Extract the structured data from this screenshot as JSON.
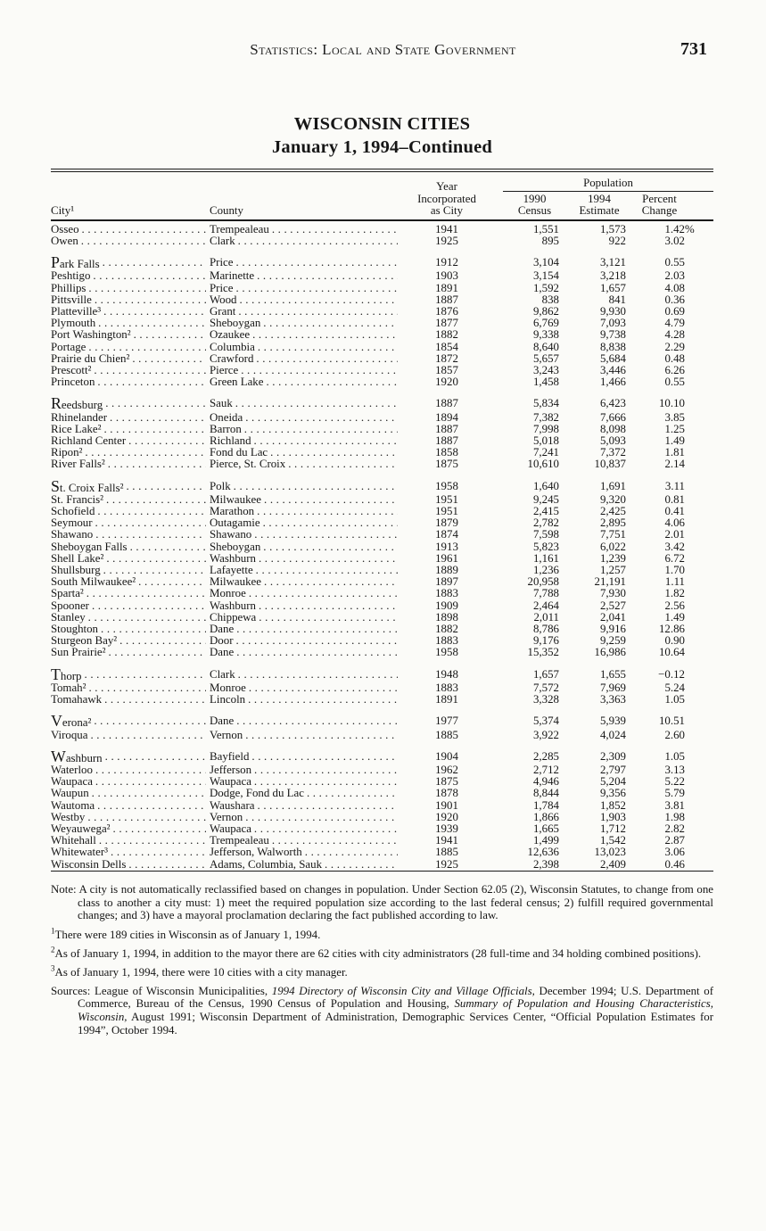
{
  "page": {
    "running_head": "Statistics: Local and State Government",
    "page_number": "731"
  },
  "title": {
    "line1": "WISCONSIN CITIES",
    "line2": "January 1, 1994–Continued"
  },
  "table": {
    "percent_symbol": "%",
    "headers": {
      "city": "City¹",
      "county": "County",
      "year": "Year\nIncorporated\nas City",
      "population": "Population",
      "census": "1990\nCensus",
      "estimate": "1994\nEstimate",
      "change": "Percent\nChange"
    },
    "groups": [
      {
        "rows": [
          {
            "city": "Osseo",
            "county": "Trempealeau",
            "year": "1941",
            "census": "1,551",
            "estimate": "1,573",
            "change": "1.42",
            "pct": true
          },
          {
            "city": "Owen",
            "county": "Clark",
            "year": "1925",
            "census": "895",
            "estimate": "922",
            "change": "3.02"
          }
        ]
      },
      {
        "rows": [
          {
            "city": "Park Falls",
            "county": "Price",
            "year": "1912",
            "census": "3,104",
            "estimate": "3,121",
            "change": "0.55",
            "lead": true
          },
          {
            "city": "Peshtigo",
            "county": "Marinette",
            "year": "1903",
            "census": "3,154",
            "estimate": "3,218",
            "change": "2.03"
          },
          {
            "city": "Phillips",
            "county": "Price",
            "year": "1891",
            "census": "1,592",
            "estimate": "1,657",
            "change": "4.08"
          },
          {
            "city": "Pittsville",
            "county": "Wood",
            "year": "1887",
            "census": "838",
            "estimate": "841",
            "change": "0.36"
          },
          {
            "city": "Platteville³",
            "county": "Grant",
            "year": "1876",
            "census": "9,862",
            "estimate": "9,930",
            "change": "0.69"
          },
          {
            "city": "Plymouth",
            "county": "Sheboygan",
            "year": "1877",
            "census": "6,769",
            "estimate": "7,093",
            "change": "4.79"
          },
          {
            "city": "Port Washington²",
            "county": "Ozaukee",
            "year": "1882",
            "census": "9,338",
            "estimate": "9,738",
            "change": "4.28"
          },
          {
            "city": "Portage",
            "county": "Columbia",
            "year": "1854",
            "census": "8,640",
            "estimate": "8,838",
            "change": "2.29"
          },
          {
            "city": "Prairie du Chien²",
            "county": "Crawford",
            "year": "1872",
            "census": "5,657",
            "estimate": "5,684",
            "change": "0.48"
          },
          {
            "city": "Prescott²",
            "county": "Pierce",
            "year": "1857",
            "census": "3,243",
            "estimate": "3,446",
            "change": "6.26"
          },
          {
            "city": "Princeton",
            "county": "Green Lake",
            "year": "1920",
            "census": "1,458",
            "estimate": "1,466",
            "change": "0.55"
          }
        ]
      },
      {
        "rows": [
          {
            "city": "Reedsburg",
            "county": "Sauk",
            "year": "1887",
            "census": "5,834",
            "estimate": "6,423",
            "change": "10.10",
            "lead": true
          },
          {
            "city": "Rhinelander",
            "county": "Oneida",
            "year": "1894",
            "census": "7,382",
            "estimate": "7,666",
            "change": "3.85"
          },
          {
            "city": "Rice Lake²",
            "county": "Barron",
            "year": "1887",
            "census": "7,998",
            "estimate": "8,098",
            "change": "1.25"
          },
          {
            "city": "Richland Center",
            "county": "Richland",
            "year": "1887",
            "census": "5,018",
            "estimate": "5,093",
            "change": "1.49"
          },
          {
            "city": "Ripon²",
            "county": "Fond du Lac",
            "year": "1858",
            "census": "7,241",
            "estimate": "7,372",
            "change": "1.81"
          },
          {
            "city": "River Falls²",
            "county": "Pierce, St. Croix",
            "year": "1875",
            "census": "10,610",
            "estimate": "10,837",
            "change": "2.14"
          }
        ]
      },
      {
        "rows": [
          {
            "city": "St. Croix Falls²",
            "county": "Polk",
            "year": "1958",
            "census": "1,640",
            "estimate": "1,691",
            "change": "3.11",
            "lead": true
          },
          {
            "city": "St. Francis²",
            "county": "Milwaukee",
            "year": "1951",
            "census": "9,245",
            "estimate": "9,320",
            "change": "0.81"
          },
          {
            "city": "Schofield",
            "county": "Marathon",
            "year": "1951",
            "census": "2,415",
            "estimate": "2,425",
            "change": "0.41"
          },
          {
            "city": "Seymour",
            "county": "Outagamie",
            "year": "1879",
            "census": "2,782",
            "estimate": "2,895",
            "change": "4.06"
          },
          {
            "city": "Shawano",
            "county": "Shawano",
            "year": "1874",
            "census": "7,598",
            "estimate": "7,751",
            "change": "2.01"
          },
          {
            "city": "Sheboygan Falls",
            "county": "Sheboygan",
            "year": "1913",
            "census": "5,823",
            "estimate": "6,022",
            "change": "3.42"
          },
          {
            "city": "Shell Lake²",
            "county": "Washburn",
            "year": "1961",
            "census": "1,161",
            "estimate": "1,239",
            "change": "6.72"
          },
          {
            "city": "Shullsburg",
            "county": "Lafayette",
            "year": "1889",
            "census": "1,236",
            "estimate": "1,257",
            "change": "1.70"
          },
          {
            "city": "South Milwaukee²",
            "county": "Milwaukee",
            "year": "1897",
            "census": "20,958",
            "estimate": "21,191",
            "change": "1.11"
          },
          {
            "city": "Sparta²",
            "county": "Monroe",
            "year": "1883",
            "census": "7,788",
            "estimate": "7,930",
            "change": "1.82"
          },
          {
            "city": "Spooner",
            "county": "Washburn",
            "year": "1909",
            "census": "2,464",
            "estimate": "2,527",
            "change": "2.56"
          },
          {
            "city": "Stanley",
            "county": "Chippewa",
            "year": "1898",
            "census": "2,011",
            "estimate": "2,041",
            "change": "1.49"
          },
          {
            "city": "Stoughton",
            "county": "Dane",
            "year": "1882",
            "census": "8,786",
            "estimate": "9,916",
            "change": "12.86"
          },
          {
            "city": "Sturgeon Bay²",
            "county": "Door",
            "year": "1883",
            "census": "9,176",
            "estimate": "9,259",
            "change": "0.90"
          },
          {
            "city": "Sun Prairie²",
            "county": "Dane",
            "year": "1958",
            "census": "15,352",
            "estimate": "16,986",
            "change": "10.64"
          }
        ]
      },
      {
        "rows": [
          {
            "city": "Thorp",
            "county": "Clark",
            "year": "1948",
            "census": "1,657",
            "estimate": "1,655",
            "change": "−0.12",
            "lead": true
          },
          {
            "city": "Tomah²",
            "county": "Monroe",
            "year": "1883",
            "census": "7,572",
            "estimate": "7,969",
            "change": "5.24"
          },
          {
            "city": "Tomahawk",
            "county": "Lincoln",
            "year": "1891",
            "census": "3,328",
            "estimate": "3,363",
            "change": "1.05"
          }
        ]
      },
      {
        "rows": [
          {
            "city": "Verona²",
            "county": "Dane",
            "year": "1977",
            "census": "5,374",
            "estimate": "5,939",
            "change": "10.51",
            "lead": true
          },
          {
            "city": "Viroqua",
            "county": "Vernon",
            "year": "1885",
            "census": "3,922",
            "estimate": "4,024",
            "change": "2.60"
          }
        ]
      },
      {
        "rows": [
          {
            "city": "Washburn",
            "county": "Bayfield",
            "year": "1904",
            "census": "2,285",
            "estimate": "2,309",
            "change": "1.05",
            "lead": true
          },
          {
            "city": "Waterloo",
            "county": "Jefferson",
            "year": "1962",
            "census": "2,712",
            "estimate": "2,797",
            "change": "3.13"
          },
          {
            "city": "Waupaca",
            "county": "Waupaca",
            "year": "1875",
            "census": "4,946",
            "estimate": "5,204",
            "change": "5.22"
          },
          {
            "city": "Waupun",
            "county": "Dodge, Fond du Lac",
            "year": "1878",
            "census": "8,844",
            "estimate": "9,356",
            "change": "5.79"
          },
          {
            "city": "Wautoma",
            "county": "Waushara",
            "year": "1901",
            "census": "1,784",
            "estimate": "1,852",
            "change": "3.81"
          },
          {
            "city": "Westby",
            "county": "Vernon",
            "year": "1920",
            "census": "1,866",
            "estimate": "1,903",
            "change": "1.98"
          },
          {
            "city": "Weyauwega²",
            "county": "Waupaca",
            "year": "1939",
            "census": "1,665",
            "estimate": "1,712",
            "change": "2.82"
          },
          {
            "city": "Whitehall",
            "county": "Trempealeau",
            "year": "1941",
            "census": "1,499",
            "estimate": "1,542",
            "change": "2.87"
          },
          {
            "city": "Whitewater³",
            "county": "Jefferson, Walworth",
            "year": "1885",
            "census": "12,636",
            "estimate": "13,023",
            "change": "3.06"
          },
          {
            "city": "Wisconsin Dells",
            "county": "Adams, Columbia, Sauk",
            "year": "1925",
            "census": "2,398",
            "estimate": "2,409",
            "change": "0.46"
          }
        ]
      }
    ]
  },
  "notes": {
    "note": "Note: A city is not automatically reclassified based on changes in population.  Under Section 62.05 (2), Wisconsin Statutes, to change from one class to another a city must: 1) meet the required population size according to the last federal census; 2) fulfill required governmental changes; and 3) have a mayoral proclamation declaring the fact published according to law.",
    "footnotes": [
      {
        "marker": "1",
        "text": "There were 189 cities in Wisconsin as of January 1, 1994."
      },
      {
        "marker": "2",
        "text": "As of January 1, 1994, in addition to the mayor there are 62 cities with city administrators (28 full-time and 34 holding combined positions)."
      },
      {
        "marker": "3",
        "text": "As of January 1, 1994, there were 10 cities with a city manager."
      }
    ],
    "sources_segments": [
      {
        "text": "Sources: League of Wisconsin Municipalities, ",
        "italic": false
      },
      {
        "text": "1994 Directory of Wisconsin City and Village Officials,",
        "italic": true
      },
      {
        "text": " December 1994; U.S. Department of Commerce, Bureau of the Census, 1990 Census of Population and Housing, ",
        "italic": false
      },
      {
        "text": "Summary of Population and Housing Characteristics, Wisconsin,",
        "italic": true
      },
      {
        "text": " August 1991; Wisconsin Department of Administration, Demographic Services Center, “Official Population Estimates for 1994”, October 1994.",
        "italic": false
      }
    ]
  }
}
